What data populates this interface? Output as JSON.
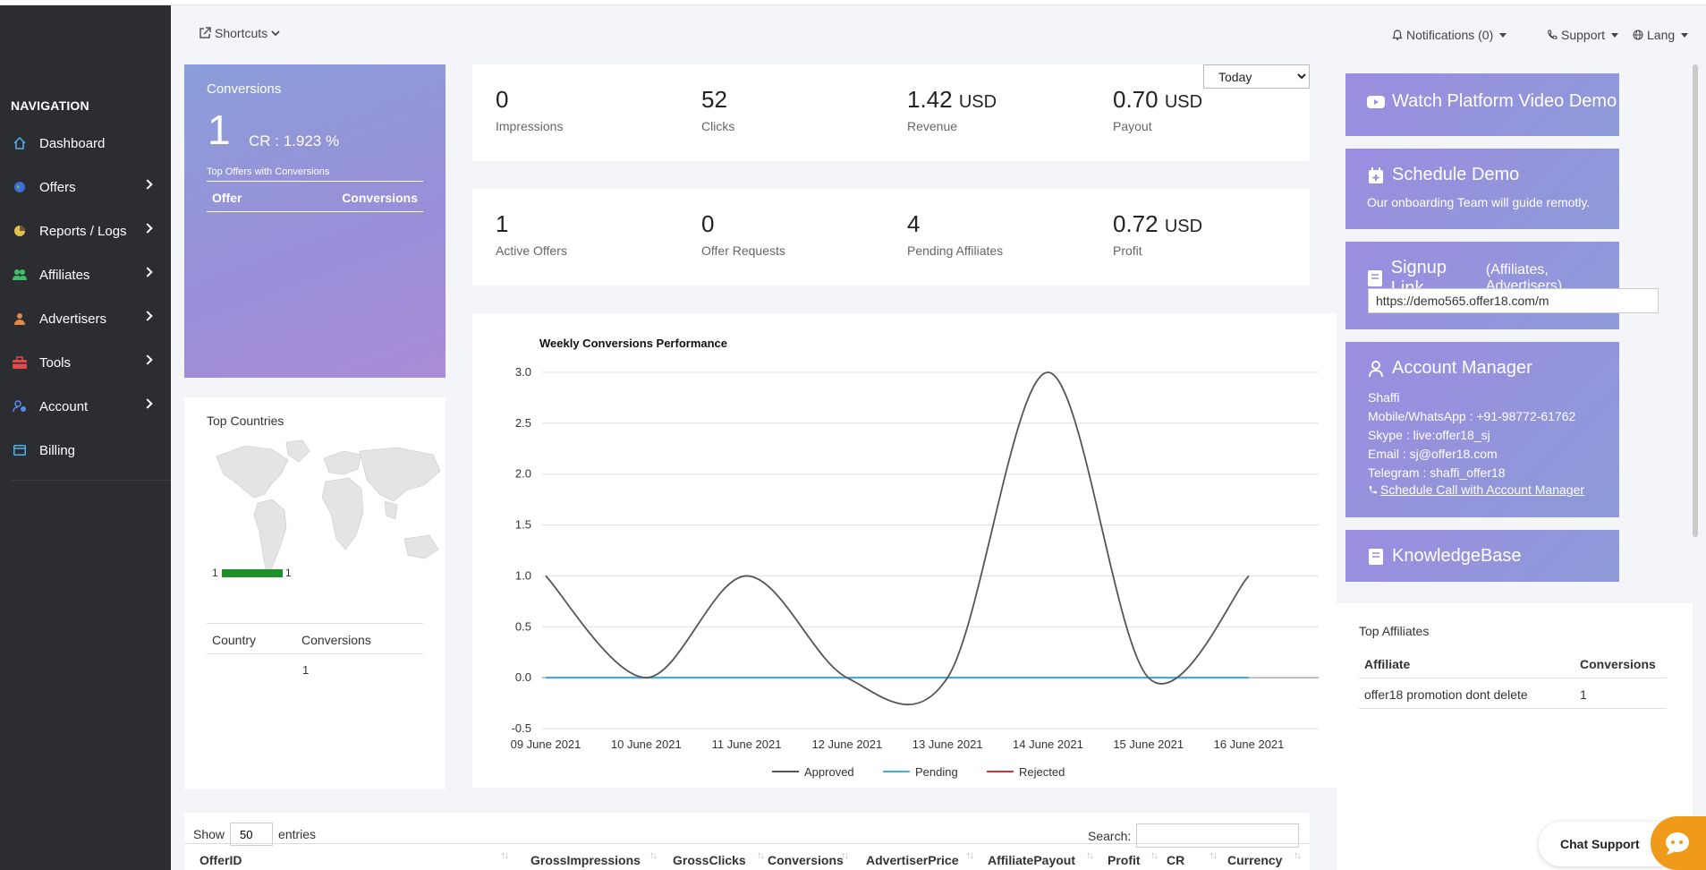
{
  "topbar": {
    "shortcuts": "Shortcuts",
    "notifications": "Notifications (0)",
    "support": "Support",
    "lang": "Lang"
  },
  "sidebar": {
    "title": "NAVIGATION",
    "items": [
      {
        "label": "Dashboard",
        "icon": "home-icon",
        "color": "#4fb3e8",
        "chevron": false
      },
      {
        "label": "Offers",
        "icon": "globe-icon",
        "color": "#3d6ed8",
        "chevron": true
      },
      {
        "label": "Reports / Logs",
        "icon": "pie-chart-icon",
        "color": "#e0c04a",
        "chevron": true
      },
      {
        "label": "Affiliates",
        "icon": "users-icon",
        "color": "#3fbf6a",
        "chevron": true
      },
      {
        "label": "Advertisers",
        "icon": "user-icon",
        "color": "#e08a4a",
        "chevron": true
      },
      {
        "label": "Tools",
        "icon": "toolbox-icon",
        "color": "#e04a4a",
        "chevron": true
      },
      {
        "label": "Account",
        "icon": "user-gear-icon",
        "color": "#5a8ae8",
        "chevron": true
      },
      {
        "label": "Billing",
        "icon": "card-icon",
        "color": "#4fb3e8",
        "chevron": false
      }
    ]
  },
  "conversions_card": {
    "title": "Conversions",
    "count": "1",
    "cr": "CR : 1.923 %",
    "subtitle": "Top Offers with Conversions",
    "col_offer": "Offer",
    "col_conversions": "Conversions"
  },
  "stats_row1": [
    {
      "value": "0",
      "unit": "",
      "label": "Impressions"
    },
    {
      "value": "52",
      "unit": "",
      "label": "Clicks"
    },
    {
      "value": "1.42",
      "unit": "USD",
      "label": "Revenue"
    },
    {
      "value": "0.70",
      "unit": "USD",
      "label": "Payout"
    }
  ],
  "stats_row2": [
    {
      "value": "1",
      "unit": "",
      "label": "Active Offers"
    },
    {
      "value": "0",
      "unit": "",
      "label": "Offer Requests"
    },
    {
      "value": "4",
      "unit": "",
      "label": "Pending Affiliates"
    },
    {
      "value": "0.72",
      "unit": "USD",
      "label": "Profit"
    }
  ],
  "period_select": {
    "value": "Today"
  },
  "top_countries": {
    "title": "Top Countries",
    "legend_min": "1",
    "legend_max": "1",
    "col_country": "Country",
    "col_conversions": "Conversions",
    "rows": [
      {
        "country": "",
        "conversions": "1"
      }
    ]
  },
  "chart_data": {
    "type": "line",
    "title": "Weekly Conversions Performance",
    "categories": [
      "09 June 2021",
      "10 June 2021",
      "11 June 2021",
      "12 June 2021",
      "13 June 2021",
      "14 June 2021",
      "15 June 2021",
      "16 June 2021"
    ],
    "series": [
      {
        "name": "Approved",
        "color": "#555555",
        "values": [
          1,
          0,
          1,
          0,
          0,
          3,
          0,
          1
        ]
      },
      {
        "name": "Pending",
        "color": "#3fb1d6",
        "values": [
          0,
          0,
          0,
          0,
          0,
          0,
          0,
          0
        ]
      },
      {
        "name": "Rejected",
        "color": "#e03030",
        "values": [
          0,
          0,
          0,
          0,
          0,
          0,
          0,
          0
        ]
      }
    ],
    "ylim": [
      -0.5,
      3.0
    ],
    "yticks": [
      "3.0",
      "2.5",
      "2.0",
      "1.5",
      "1.0",
      "0.5",
      "0.0",
      "-0.5"
    ],
    "grid": true,
    "legend": "bottom"
  },
  "right_cards": {
    "video": "Watch Platform Video Demo",
    "schedule_title": "Schedule Demo",
    "schedule_text": "Our onboarding Team will guide remotly.",
    "signup_title": "Signup Link",
    "signup_sub": "(Affiliates, Advertisers)",
    "signup_url": "https://demo565.offer18.com/m",
    "manager_title": "Account Manager",
    "manager_lines": [
      "Shaffi",
      "Mobile/WhatsApp : +91-98772-61762",
      "Skype : live:offer18_sj",
      "Email : sj@offer18.com",
      "Telegram : shaffi_offer18"
    ],
    "manager_call": "Schedule Call with Account Manager",
    "kb_title": "KnowledgeBase"
  },
  "top_affiliates": {
    "title": "Top Affiliates",
    "col_affiliate": "Affiliate",
    "col_conversions": "Conversions",
    "rows": [
      {
        "affiliate": "offer18 promotion dont delete",
        "conversions": "1"
      }
    ]
  },
  "table": {
    "show": "Show",
    "entries_value": "50",
    "entries": "entries",
    "search": "Search:",
    "columns": [
      "OfferID",
      "GrossImpressions",
      "GrossClicks",
      "Conversions",
      "AdvertiserPrice",
      "AffiliatePayout",
      "Profit",
      "CR",
      "Currency"
    ]
  },
  "chat": {
    "label": "Chat Support"
  }
}
